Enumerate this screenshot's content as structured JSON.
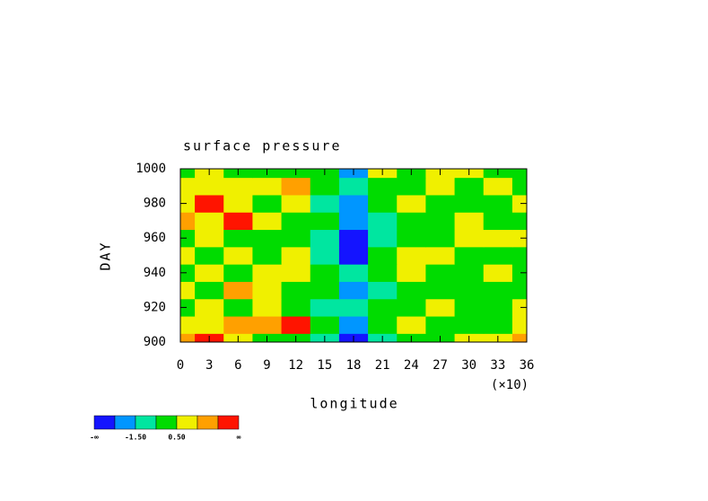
{
  "chart_data": {
    "type": "contour",
    "title": "surface pressure",
    "xlabel": "longitude",
    "ylabel": "DAY",
    "x_scale_note": "(×10)",
    "x": [
      0,
      3,
      6,
      9,
      12,
      15,
      18,
      21,
      24,
      27,
      30,
      33,
      36
    ],
    "y": [
      900,
      910,
      920,
      930,
      940,
      950,
      960,
      970,
      980,
      990,
      1000
    ],
    "z": [
      [
        2,
        3,
        1,
        0,
        0,
        -1,
        -3,
        -1,
        0,
        0,
        1,
        1,
        2
      ],
      [
        1,
        1,
        2,
        2,
        3,
        0,
        -2,
        0,
        1,
        0,
        0,
        0,
        1
      ],
      [
        0,
        1,
        0,
        1,
        0,
        -1,
        -1,
        0,
        0,
        1,
        0,
        0,
        1
      ],
      [
        1,
        0,
        2,
        1,
        0,
        0,
        -2,
        -1,
        0,
        0,
        0,
        0,
        0
      ],
      [
        0,
        1,
        0,
        1,
        1,
        0,
        -1,
        0,
        1,
        0,
        0,
        1,
        0
      ],
      [
        1,
        0,
        1,
        0,
        1,
        -1,
        -3,
        0,
        1,
        1,
        0,
        0,
        0
      ],
      [
        0,
        1,
        0,
        0,
        0,
        -1,
        -3,
        -1,
        0,
        0,
        1,
        1,
        1
      ],
      [
        2,
        1,
        3,
        1,
        0,
        0,
        -2,
        -1,
        0,
        0,
        1,
        0,
        0
      ],
      [
        1,
        3,
        1,
        0,
        1,
        -1,
        -2,
        0,
        1,
        0,
        0,
        0,
        1
      ],
      [
        1,
        1,
        1,
        1,
        2,
        0,
        -1,
        0,
        0,
        1,
        0,
        1,
        0
      ],
      [
        0,
        1,
        0,
        0,
        0,
        0,
        -2,
        1,
        0,
        1,
        1,
        0,
        0
      ]
    ],
    "levels": [
      -2.5,
      -1.5,
      -0.5,
      0.5,
      1.5,
      2.5
    ],
    "colors": [
      "#1414ff",
      "#0096ff",
      "#00e6a0",
      "#00dc00",
      "#f0f000",
      "#ffa000",
      "#ff1400"
    ],
    "colorbar_labels": [
      {
        "value": -1.5,
        "label": "-1.50"
      },
      {
        "value": 0.5,
        "label": "0.50"
      }
    ],
    "colorbar_ends": [
      "-∞",
      "∞"
    ],
    "xlim": [
      0,
      36
    ],
    "ylim": [
      900,
      1000
    ],
    "xticks": [
      0,
      3,
      6,
      9,
      12,
      15,
      18,
      21,
      24,
      27,
      30,
      33,
      36
    ],
    "yticks": [
      900,
      920,
      940,
      960,
      980,
      1000
    ]
  }
}
